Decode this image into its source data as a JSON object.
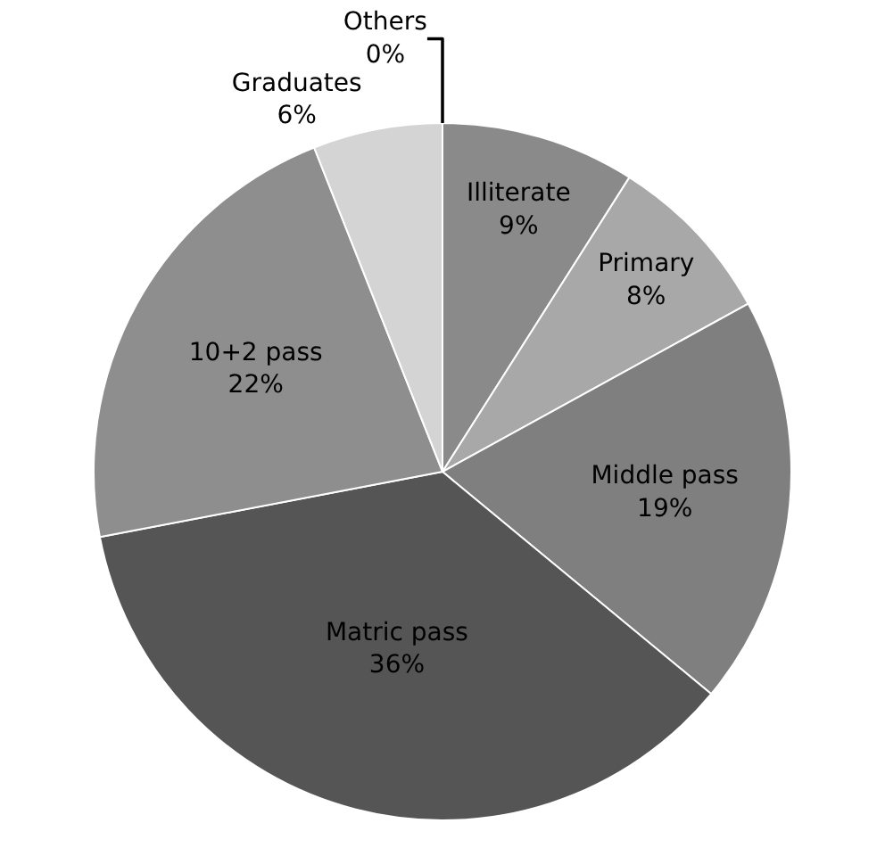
{
  "chart_data": {
    "type": "pie",
    "categories": [
      "Illiterate",
      "Primary",
      "Middle pass",
      "Matric pass",
      "10+2 pass",
      "Graduates",
      "Others"
    ],
    "values": [
      9,
      8,
      19,
      36,
      22,
      6,
      0
    ],
    "value_labels": [
      "9%",
      "8%",
      "19%",
      "36%",
      "22%",
      "6%",
      "0%"
    ],
    "colors": [
      "#8a8a8a",
      "#a8a8a8",
      "#7f7f7f",
      "#555555",
      "#8e8e8e",
      "#d4d4d4",
      "#9a9a9a"
    ],
    "legend": false
  }
}
